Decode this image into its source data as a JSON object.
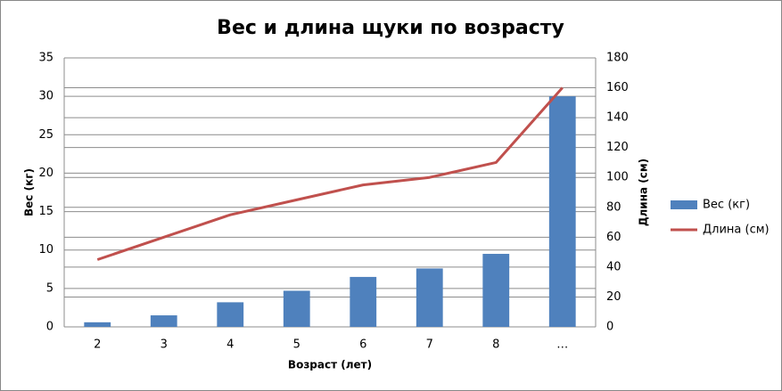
{
  "chart_data": {
    "type": "combo",
    "title": "Вес и длина щуки по возрасту",
    "x_label": "Возраст (лет)",
    "y_label": "Вес (кг)",
    "y2_label": "Длина (см)",
    "categories": [
      "2",
      "3",
      "4",
      "5",
      "6",
      "7",
      "8",
      "…"
    ],
    "series": [
      {
        "name": "Вес (кг)",
        "type": "bar",
        "color": "#4f81bd",
        "values": [
          0.6,
          1.5,
          3.2,
          4.7,
          6.5,
          7.6,
          9.5,
          30
        ]
      },
      {
        "name": "Длина (см)",
        "type": "line",
        "axis": "y2",
        "color": "#c0504d",
        "values": [
          45,
          60,
          75,
          85,
          95,
          100,
          110,
          160
        ]
      }
    ],
    "ylim": [
      0,
      35
    ],
    "yticks": [
      0,
      5,
      10,
      15,
      20,
      25,
      30,
      35
    ],
    "y2lim": [
      0,
      180
    ],
    "y2ticks": [
      0,
      20,
      40,
      60,
      80,
      100,
      120,
      140,
      160,
      180
    ],
    "grid": true,
    "legend": "right"
  }
}
